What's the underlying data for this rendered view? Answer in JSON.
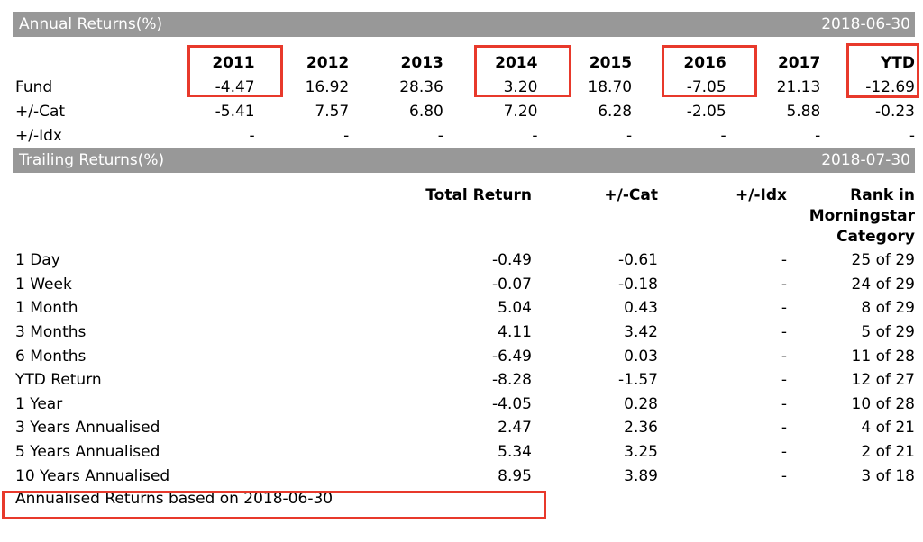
{
  "colors": {
    "highlight_red": "#e8392b",
    "section_bar_bg": "#989898",
    "section_bar_text": "#ffffff",
    "text": "#000000"
  },
  "annual_returns": {
    "title": "Annual Returns(%)",
    "date": "2018-06-30",
    "columns": [
      "2011",
      "2012",
      "2013",
      "2014",
      "2015",
      "2016",
      "2017",
      "YTD"
    ],
    "rows": [
      {
        "label": "Fund",
        "values": [
          "-4.47",
          "16.92",
          "28.36",
          "3.20",
          "18.70",
          "-7.05",
          "21.13",
          "-12.69"
        ]
      },
      {
        "label": "+/-Cat",
        "values": [
          "-5.41",
          "7.57",
          "6.80",
          "7.20",
          "6.28",
          "-2.05",
          "5.88",
          "-0.23"
        ]
      },
      {
        "label": "+/-Idx",
        "values": [
          "-",
          "-",
          "-",
          "-",
          "-",
          "-",
          "-",
          "-"
        ]
      }
    ],
    "highlighted_columns": [
      "2011",
      "2014",
      "2016",
      "YTD"
    ]
  },
  "trailing_returns": {
    "title": "Trailing Returns(%)",
    "date": "2018-07-30",
    "columns": [
      "Total Return",
      "+/-Cat",
      "+/-Idx",
      "Rank in Morningstar Category"
    ],
    "rows": [
      {
        "label": "1 Day",
        "total_return": "-0.49",
        "cat": "-0.61",
        "idx": "-",
        "rank": "25 of 29"
      },
      {
        "label": "1 Week",
        "total_return": "-0.07",
        "cat": "-0.18",
        "idx": "-",
        "rank": "24 of 29"
      },
      {
        "label": "1 Month",
        "total_return": "5.04",
        "cat": "0.43",
        "idx": "-",
        "rank": "8 of 29"
      },
      {
        "label": "3 Months",
        "total_return": "4.11",
        "cat": "3.42",
        "idx": "-",
        "rank": "5 of 29"
      },
      {
        "label": "6 Months",
        "total_return": "-6.49",
        "cat": "0.03",
        "idx": "-",
        "rank": "11 of 28"
      },
      {
        "label": "YTD Return",
        "total_return": "-8.28",
        "cat": "-1.57",
        "idx": "-",
        "rank": "12 of 27"
      },
      {
        "label": "1 Year",
        "total_return": "-4.05",
        "cat": "0.28",
        "idx": "-",
        "rank": "10 of 28"
      },
      {
        "label": "3 Years Annualised",
        "total_return": "2.47",
        "cat": "2.36",
        "idx": "-",
        "rank": "4 of 21"
      },
      {
        "label": "5 Years Annualised",
        "total_return": "5.34",
        "cat": "3.25",
        "idx": "-",
        "rank": "2 of 21"
      },
      {
        "label": "10 Years Annualised",
        "total_return": "8.95",
        "cat": "3.89",
        "idx": "-",
        "rank": "3 of 18"
      }
    ],
    "highlighted_row": "10 Years Annualised"
  },
  "footer": {
    "note": "Annualised Returns based on 2018-06-30"
  }
}
